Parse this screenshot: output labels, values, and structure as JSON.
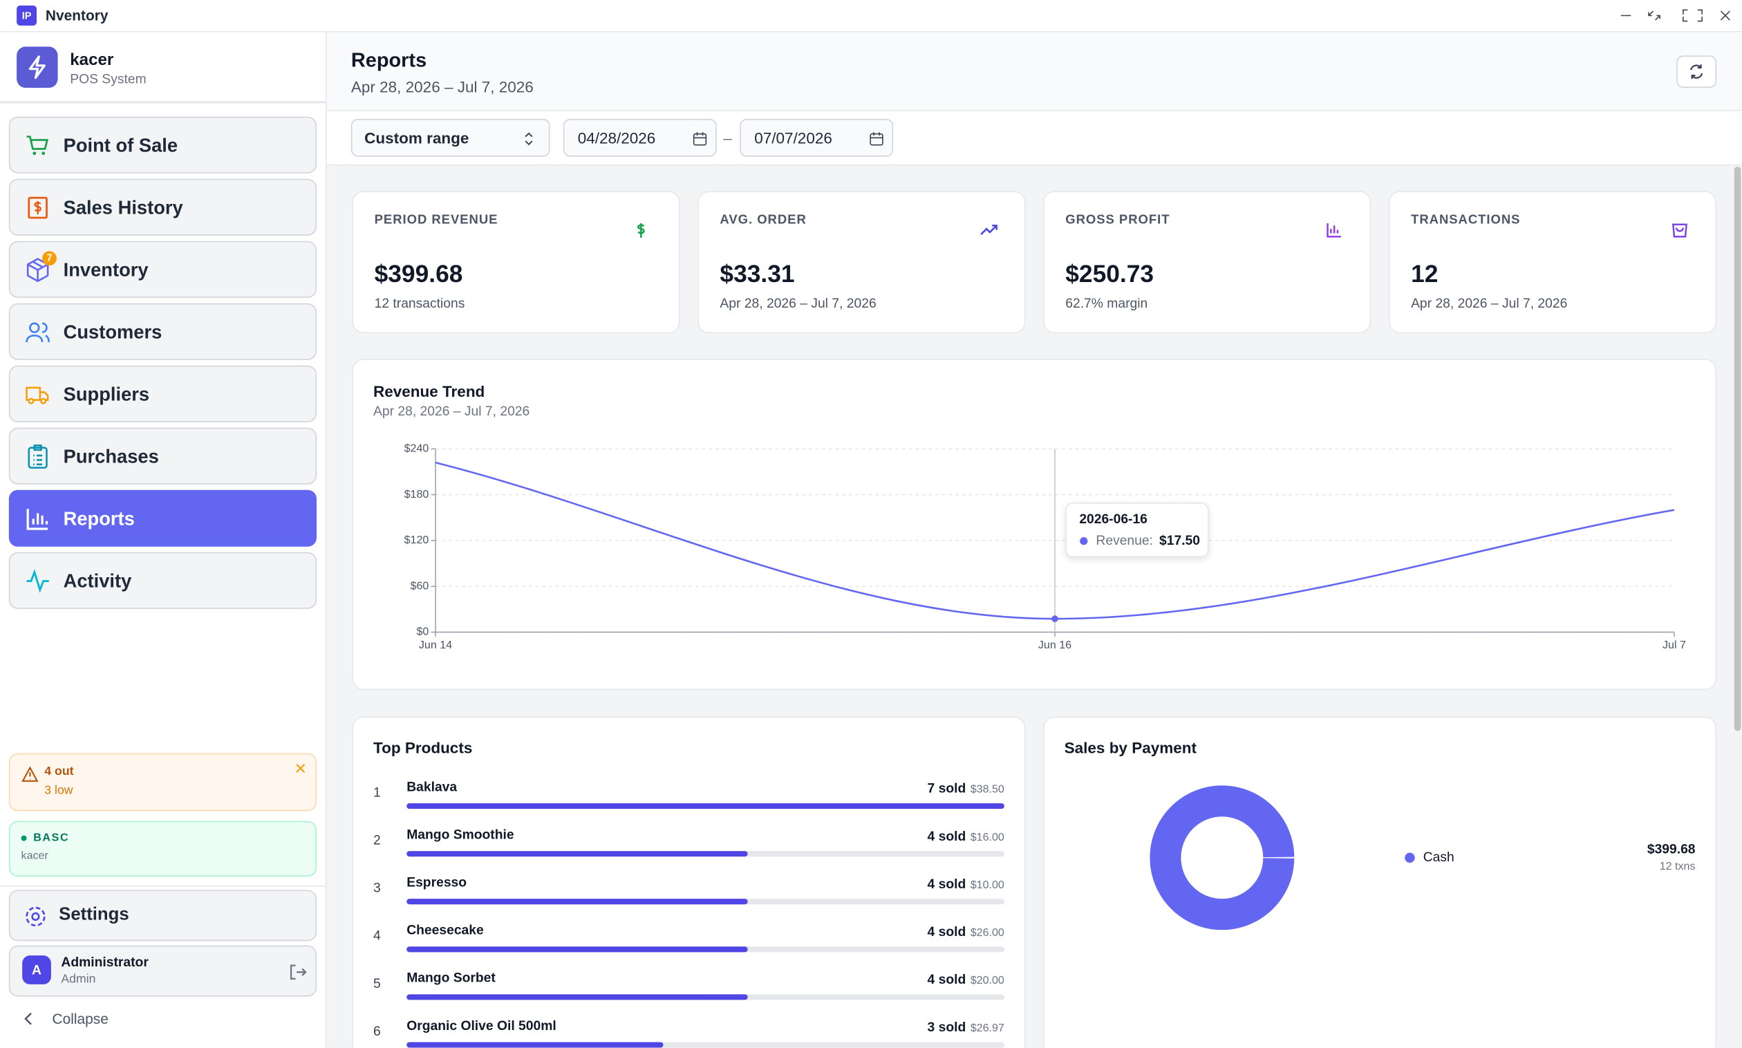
{
  "window": {
    "icon": "IP",
    "title": "Nventory"
  },
  "sidebar": {
    "brand": "kacer",
    "subtitle": "POS System",
    "nav": [
      {
        "label": "Point of Sale"
      },
      {
        "label": "Sales History"
      },
      {
        "label": "Inventory",
        "badge": "7"
      },
      {
        "label": "Customers"
      },
      {
        "label": "Suppliers"
      },
      {
        "label": "Purchases"
      },
      {
        "label": "Reports",
        "active": true
      },
      {
        "label": "Activity"
      }
    ],
    "alert": {
      "out": "4 out",
      "low": "3 low"
    },
    "plan": {
      "name": "BASC",
      "user": "kacer"
    },
    "settings": "Settings",
    "user": {
      "avatar": "A",
      "name": "Administrator",
      "role": "Admin"
    },
    "collapse": "Collapse"
  },
  "header": {
    "title": "Reports",
    "subtitle": "Apr 28, 2026 – Jul 7, 2026"
  },
  "filters": {
    "range": "Custom range",
    "from": "04/28/2026",
    "separator": "–",
    "to": "07/07/2026"
  },
  "kpis": [
    {
      "label": "PERIOD REVENUE",
      "value": "$399.68",
      "note": "12 transactions"
    },
    {
      "label": "AVG. ORDER",
      "value": "$33.31",
      "note": "Apr 28, 2026 – Jul 7, 2026"
    },
    {
      "label": "GROSS PROFIT",
      "value": "$250.73",
      "note": "62.7% margin"
    },
    {
      "label": "TRANSACTIONS",
      "value": "12",
      "note": "Apr 28, 2026 – Jul 7, 2026"
    }
  ],
  "chart_data": [
    {
      "type": "line",
      "title": "Revenue Trend",
      "subtitle": "Apr 28, 2026 – Jul 7, 2026",
      "categories": [
        "Jun 14",
        "Jun 16",
        "Jul 7"
      ],
      "values": [
        222,
        17.5,
        160
      ],
      "color": "#6366f1",
      "ylim": [
        0,
        240
      ],
      "yticks": [
        {
          "value": 0,
          "label": "$0"
        },
        {
          "value": 60,
          "label": "$60"
        },
        {
          "value": 120,
          "label": "$120"
        },
        {
          "value": 180,
          "label": "$180"
        },
        {
          "value": 240,
          "label": "$240"
        }
      ],
      "grid": true,
      "tooltip": {
        "title": "2026-06-16",
        "label": "Revenue:",
        "value": "$17.50"
      }
    },
    {
      "type": "bar",
      "title": "Top Products",
      "ranks": [
        1,
        2,
        3,
        4,
        5,
        6
      ],
      "categories": [
        "Baklava",
        "Mango Smoothie",
        "Espresso",
        "Cheesecake",
        "Mango Sorbet",
        "Organic Olive Oil 500ml"
      ],
      "values": [
        7,
        4,
        4,
        4,
        4,
        3
      ],
      "value_labels": [
        "7 sold",
        "4 sold",
        "4 sold",
        "4 sold",
        "4 sold",
        "3 sold"
      ],
      "amounts": [
        "$38.50",
        "$16.00",
        "$10.00",
        "$26.00",
        "$20.00",
        "$26.97"
      ],
      "color": "#4f46e5"
    },
    {
      "type": "pie",
      "title": "Sales by Payment",
      "categories": [
        "Cash"
      ],
      "values": [
        399.68
      ],
      "value_labels": [
        "$399.68"
      ],
      "notes": [
        "12 txns"
      ],
      "colors": [
        "#6366f1"
      ]
    }
  ]
}
